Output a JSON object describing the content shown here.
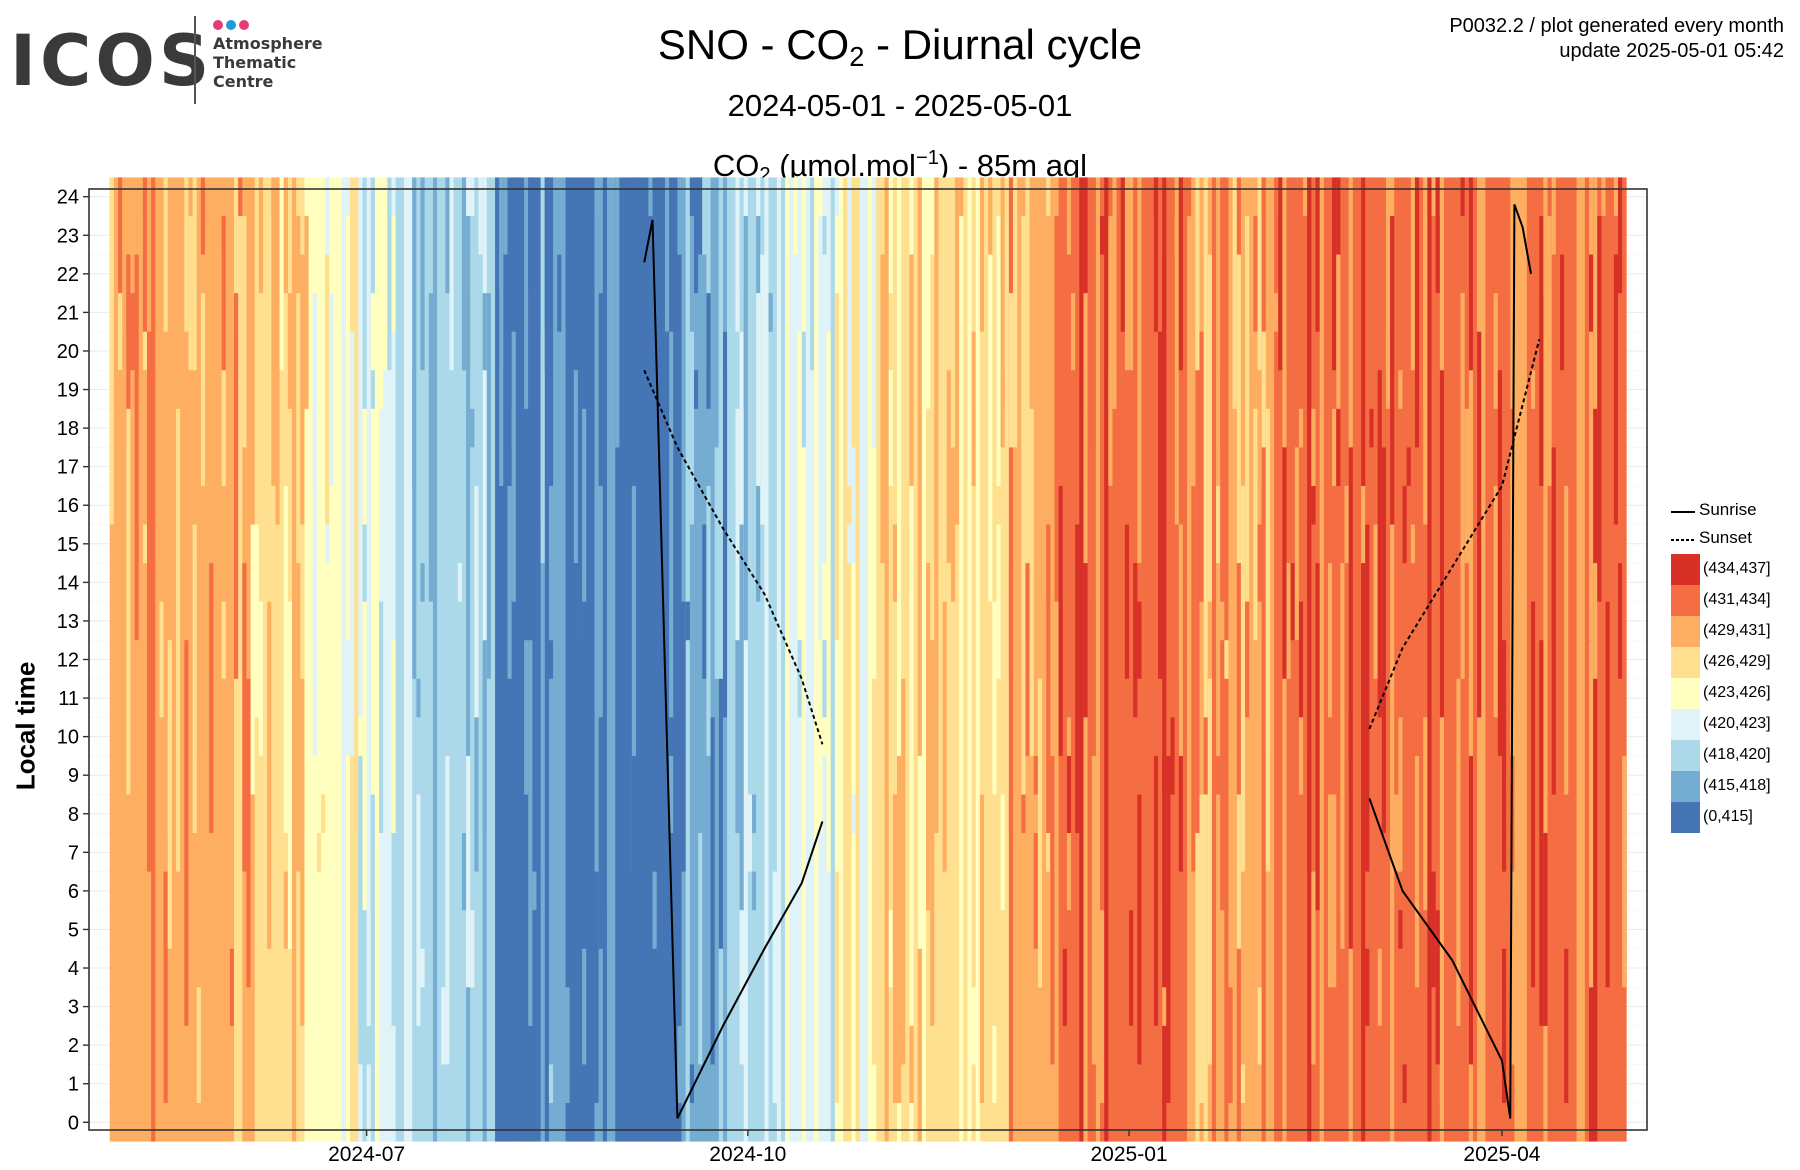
{
  "logo": {
    "word": "ICOS",
    "lines": [
      "Atmosphere",
      "Thematic",
      "Centre"
    ],
    "dot_colors": [
      "#e63b7a",
      "#1e9bd7",
      "#e63b7a"
    ]
  },
  "header": {
    "title_pre": "SNO - CO",
    "title_sub": "2",
    "title_post": " - Diurnal cycle",
    "period": "2024-05-01 - 2025-05-01",
    "var_pre": "CO",
    "var_sub": "2",
    "var_mid": " (µmol.mol",
    "var_sup": "−1",
    "var_post": ") - 85m agl",
    "info_line1": "P0032.2 / plot generated every month",
    "info_line2": "update  2025-05-01 05:42"
  },
  "chart_data": {
    "type": "heatmap",
    "title": "SNO - CO2 - Diurnal cycle",
    "subtitle": "2024-05-01 - 2025-05-01",
    "legend_title": "CO2 (µmol.mol-1) - 85m agl",
    "xlabel": "",
    "ylabel": "Local time",
    "x_ticks": [
      "2024-07",
      "2024-10",
      "2025-01",
      "2025-04"
    ],
    "xlim": [
      "2024-04-25",
      "2025-05-06"
    ],
    "y_ticks": [
      0,
      1,
      2,
      3,
      4,
      5,
      6,
      7,
      8,
      9,
      10,
      11,
      12,
      13,
      14,
      15,
      16,
      17,
      18,
      19,
      20,
      21,
      22,
      23,
      24
    ],
    "ylim": [
      -0.2,
      24.2
    ],
    "grid": true,
    "legend_position": "right",
    "classes": [
      {
        "label": "(434,437]",
        "color": "#d73027"
      },
      {
        "label": "(431,434]",
        "color": "#f46d43"
      },
      {
        "label": "(429,431]",
        "color": "#fdae61"
      },
      {
        "label": "(426,429]",
        "color": "#fee090"
      },
      {
        "label": "(423,426]",
        "color": "#ffffbf"
      },
      {
        "label": "(420,423]",
        "color": "#e0f3f8"
      },
      {
        "label": "(418,420]",
        "color": "#abd9e9"
      },
      {
        "label": "(415,418]",
        "color": "#74add1"
      },
      {
        "label": "(0,415]",
        "color": "#4575b4"
      }
    ],
    "monthly_dominant_class": [
      {
        "start": "2024-04-30",
        "end": "2024-06-03",
        "label": "(429,431]"
      },
      {
        "start": "2024-06-03",
        "end": "2024-06-17",
        "label": "(426,429]"
      },
      {
        "start": "2024-06-17",
        "end": "2024-06-29",
        "label": "(423,426]"
      },
      {
        "start": "2024-06-29",
        "end": "2024-07-12",
        "label": "(420,423]"
      },
      {
        "start": "2024-07-12",
        "end": "2024-08-01",
        "label": "(418,420]"
      },
      {
        "start": "2024-08-01",
        "end": "2024-08-12",
        "label": "(0,415]"
      },
      {
        "start": "2024-08-12",
        "end": "2024-08-18",
        "label": "(415,418]"
      },
      {
        "start": "2024-08-18",
        "end": "2024-09-16",
        "label": "(0,415]"
      },
      {
        "start": "2024-09-16",
        "end": "2024-09-27",
        "label": "(415,418]"
      },
      {
        "start": "2024-09-27",
        "end": "2024-10-08",
        "label": "(418,420]"
      },
      {
        "start": "2024-10-08",
        "end": "2024-10-22",
        "label": "(420,423]"
      },
      {
        "start": "2024-10-22",
        "end": "2024-11-01",
        "label": "(423,426]"
      },
      {
        "start": "2024-11-01",
        "end": "2024-12-02",
        "label": "(426,429]"
      },
      {
        "start": "2024-12-02",
        "end": "2024-12-15",
        "label": "(429,431]"
      },
      {
        "start": "2024-12-15",
        "end": "2025-01-15",
        "label": "(431,434]"
      },
      {
        "start": "2025-01-15",
        "end": "2025-02-05",
        "label": "(429,431]"
      },
      {
        "start": "2025-02-05",
        "end": "2025-05-01",
        "label": "(431,434]"
      }
    ],
    "sunrise_series": [
      {
        "name": "Sunrise",
        "x": [
          "2024-09-06",
          "2024-09-08",
          "2024-09-14"
        ],
        "y": [
          22.3,
          23.4,
          0.1
        ]
      },
      {
        "name": "Sunrise",
        "x": [
          "2024-09-14",
          "2024-09-25",
          "2024-10-05",
          "2024-10-14",
          "2024-10-19"
        ],
        "y": [
          0.1,
          2.5,
          4.5,
          6.2,
          7.8
        ]
      },
      {
        "name": "Sunrise",
        "x": [
          "2025-02-28",
          "2025-03-08",
          "2025-03-20",
          "2025-04-01",
          "2025-04-03"
        ],
        "y": [
          8.4,
          6.0,
          4.2,
          1.6,
          0.1
        ]
      },
      {
        "name": "Sunrise",
        "x": [
          "2025-04-03",
          "2025-04-04",
          "2025-04-06",
          "2025-04-08"
        ],
        "y": [
          0.1,
          23.8,
          23.2,
          22.0
        ]
      }
    ],
    "sunset_series": [
      {
        "name": "Sunset",
        "x": [
          "2024-09-06",
          "2024-09-14",
          "2024-09-25",
          "2024-10-05",
          "2024-10-14",
          "2024-10-19"
        ],
        "y": [
          19.5,
          17.5,
          15.4,
          13.7,
          11.5,
          9.8
        ]
      },
      {
        "name": "Sunset",
        "x": [
          "2025-02-28",
          "2025-03-08",
          "2025-03-20",
          "2025-04-01",
          "2025-04-10"
        ],
        "y": [
          10.2,
          12.3,
          14.4,
          16.5,
          20.3
        ]
      }
    ]
  },
  "legend": {
    "sunrise": "Sunrise",
    "sunset": "Sunset"
  }
}
